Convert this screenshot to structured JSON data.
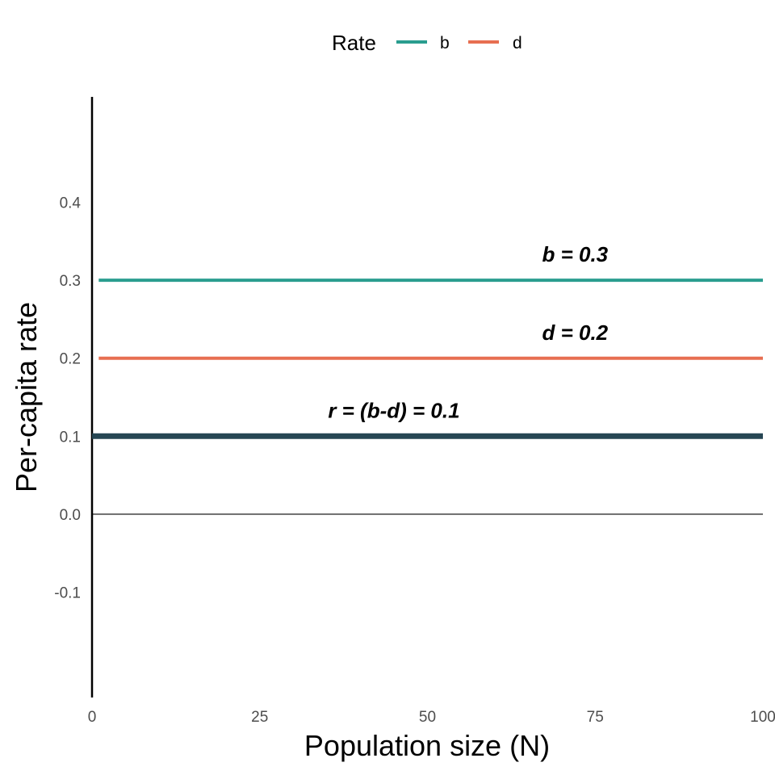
{
  "chart_data": {
    "type": "line",
    "xlabel": "Population size (N)",
    "ylabel": "Per-capita rate",
    "xlim": [
      0,
      100
    ],
    "ylim": [
      -0.235,
      0.535
    ],
    "x_ticks": [
      0,
      25,
      50,
      75,
      100
    ],
    "x_tick_labels": [
      "0",
      "25",
      "50",
      "75",
      "100"
    ],
    "y_ticks": [
      -0.1,
      0.0,
      0.1,
      0.2,
      0.3,
      0.4
    ],
    "y_tick_labels": [
      "-0.1",
      "0.0",
      "0.1",
      "0.2",
      "0.3",
      "0.4"
    ],
    "grid": false,
    "legend": {
      "title": "Rate",
      "placement": "top",
      "entries": [
        {
          "label": "b",
          "color": "#2a9d8f"
        },
        {
          "label": "d",
          "color": "#e76f51"
        }
      ]
    },
    "series": [
      {
        "name": "b",
        "x": [
          1,
          100
        ],
        "y": [
          0.3,
          0.3
        ],
        "color": "#2a9d8f"
      },
      {
        "name": "d",
        "x": [
          1,
          100
        ],
        "y": [
          0.2,
          0.2
        ],
        "color": "#e76f51"
      },
      {
        "x": [
          0,
          100
        ],
        "y": [
          0.1,
          0.1
        ],
        "color": "#264653"
      }
    ],
    "reference_line": {
      "y": 0.0,
      "color": "#000000"
    },
    "annotations": [
      {
        "text": "b = 0.3",
        "x": 72,
        "y": 0.333
      },
      {
        "text": "d = 0.2",
        "x": 72,
        "y": 0.233
      },
      {
        "text": "r = (b-d) = 0.1",
        "x": 45,
        "y": 0.133
      }
    ]
  }
}
